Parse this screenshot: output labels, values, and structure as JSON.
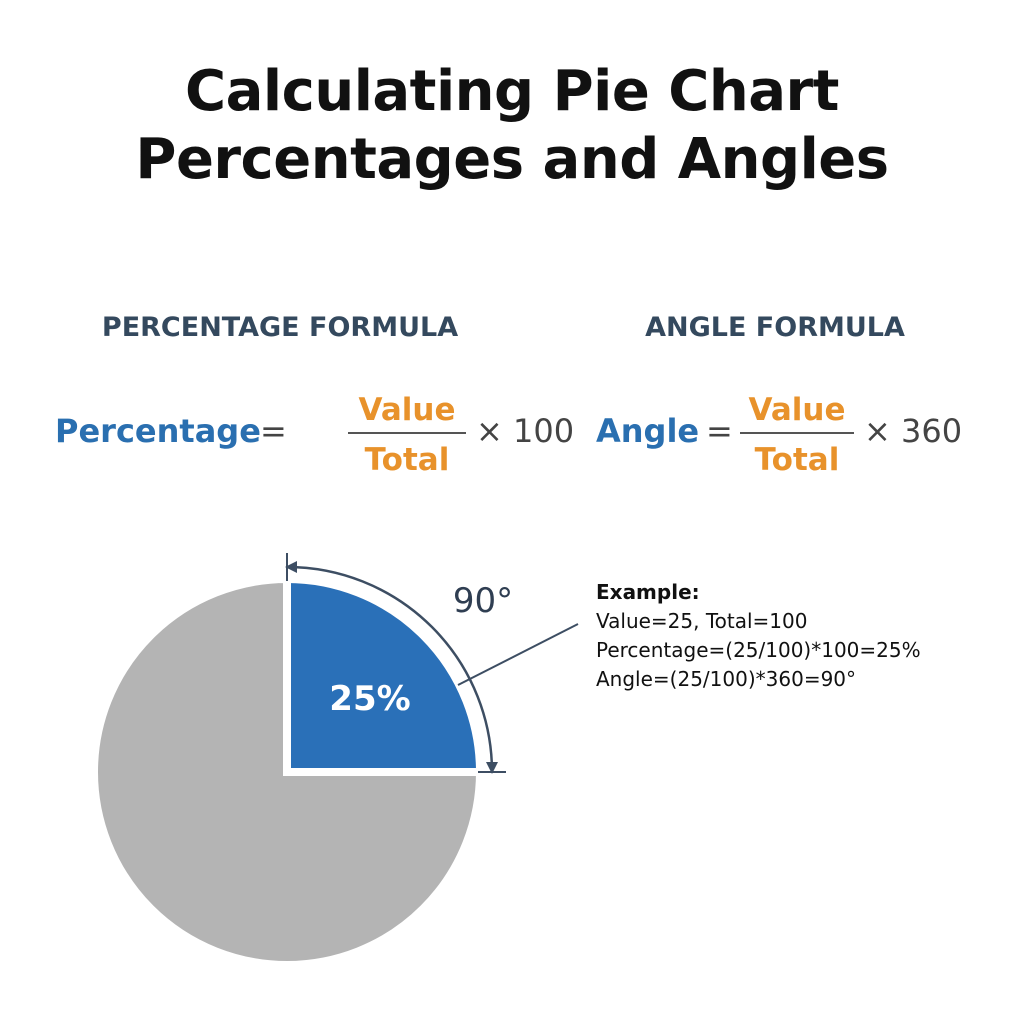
{
  "title": {
    "line1": "Calculating Pie Chart",
    "line2": "Percentages and Angles"
  },
  "percentage_formula": {
    "heading": "PERCENTAGE FORMULA",
    "lhs": "Percentage",
    "equals": "=",
    "numerator": "Value",
    "denominator": "Total",
    "multiplier": "× 100"
  },
  "angle_formula": {
    "heading": "ANGLE FORMULA",
    "lhs": "Angle",
    "equals": "=",
    "numerator": "Value",
    "denominator": "Total",
    "multiplier": "× 360"
  },
  "pie": {
    "slice_label": "25%",
    "angle_label": "90°",
    "slice_fraction": 0.25,
    "slice_color": "#2a70b8",
    "rest_color": "#b4b4b4",
    "arrow_color": "#3d4e63"
  },
  "example": {
    "title": "Example:",
    "line1": "Value=25, Total=100",
    "line2": "Percentage=(25/100)*100=25%",
    "line3": "Angle=(25/100)*360=90°"
  },
  "colors": {
    "formula_lhs": "#2a6fb0",
    "formula_fraction": "#e8922b",
    "heading": "#34495e"
  }
}
